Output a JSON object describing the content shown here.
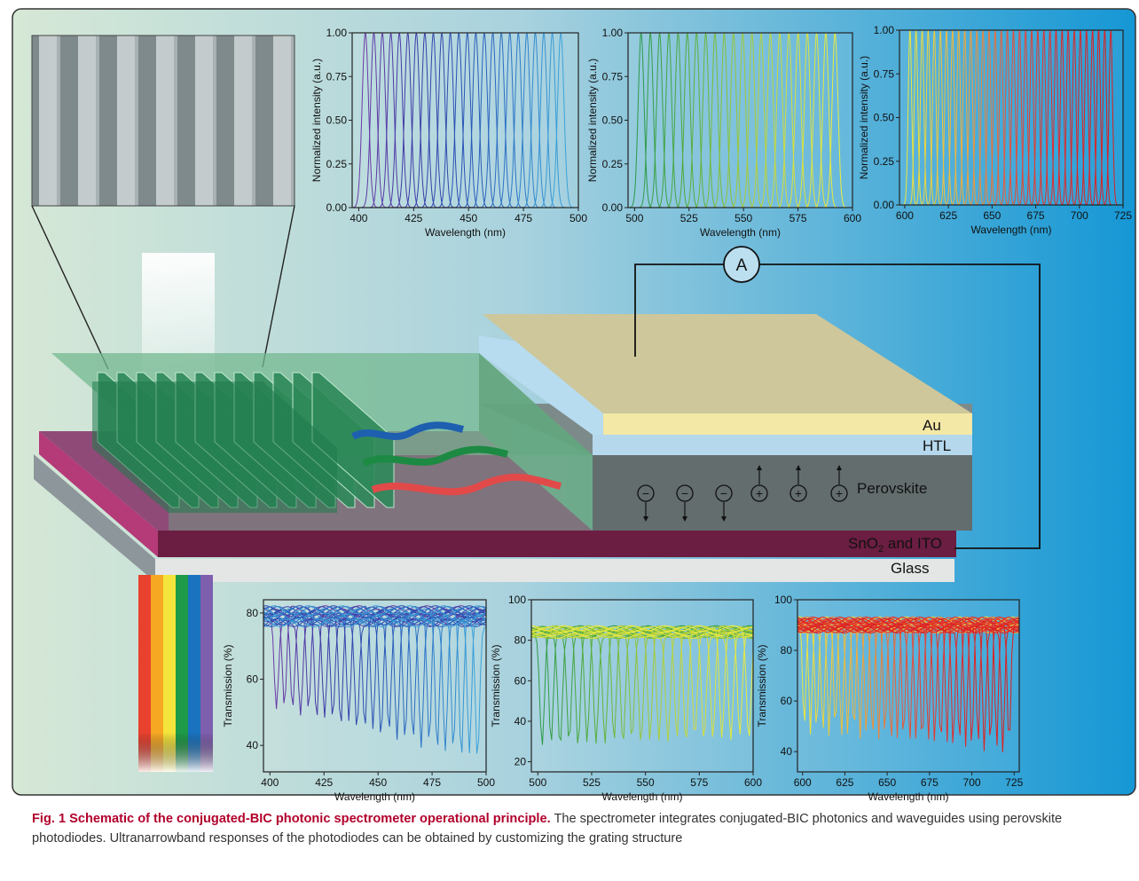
{
  "caption": {
    "label": "Fig. 1 Schematic of the conjugated-BIC photonic spectrometer operational principle.",
    "text": " The spectrometer integrates conjugated-BIC photonics and waveguides using perovskite photodiodes. Ultranarrowband responses of the photodiodes can be obtained by customizing the grating structure"
  },
  "layers": {
    "au": "Au",
    "htl": "HTL",
    "perovskite": "Perovskite",
    "sno2_prefix": "SnO",
    "sno2_sub": "2",
    "sno2_suffix": " and ITO",
    "glass": "Glass"
  },
  "ammeter": "A",
  "charges": {
    "minus": "−",
    "plus": "+"
  },
  "colors": {
    "au": "#f3e8a4",
    "htl": "#b5d9ee",
    "perovskite": "#616b6b",
    "sno2": "#6d1d42",
    "glass": "#e6e6e6",
    "background_left": "#d5e7d4",
    "background_right": "#1596d4"
  },
  "chart_data": [
    {
      "id": "resp-blue",
      "type": "line",
      "ylabel": "Normalized intensity (a.u.)",
      "xlabel": "Wavelength (nm)",
      "xlim": [
        397,
        500
      ],
      "ylim": [
        0,
        1.0
      ],
      "xticks": [
        400,
        425,
        450,
        475,
        500
      ],
      "yticks": [
        0.0,
        0.25,
        0.5,
        0.75,
        1.0
      ],
      "ytick_labels": [
        "0.00",
        "0.25",
        "0.50",
        "0.75",
        "1.00"
      ],
      "peaks_start": 403,
      "peaks_end": 492,
      "peak_count": 24,
      "peak_width": 2.6,
      "colors": [
        "#6a3aa6",
        "#3b3aa6",
        "#2853b5",
        "#2d76c7",
        "#3ba2d9"
      ]
    },
    {
      "id": "resp-green",
      "type": "line",
      "ylabel": "Normalized intensity (a.u.)",
      "xlabel": "Wavelength (nm)",
      "xlim": [
        497,
        600
      ],
      "ylim": [
        0,
        1.0
      ],
      "xticks": [
        500,
        525,
        550,
        575,
        600
      ],
      "yticks": [
        0.0,
        0.25,
        0.5,
        0.75,
        1.0
      ],
      "ytick_labels": [
        "0.00",
        "0.25",
        "0.50",
        "0.75",
        "1.00"
      ],
      "peaks_start": 503,
      "peaks_end": 592,
      "peak_count": 22,
      "peak_width": 2.4,
      "colors": [
        "#2c9a46",
        "#55ad3b",
        "#9bc73a",
        "#d3dd3a",
        "#ecec3e"
      ]
    },
    {
      "id": "resp-red",
      "type": "line",
      "ylabel": "Normalized intensity (a.u.)",
      "xlabel": "Wavelength (nm)",
      "xlim": [
        597,
        725
      ],
      "ylim": [
        0,
        1.0
      ],
      "xticks": [
        600,
        625,
        650,
        675,
        700,
        725
      ],
      "yticks": [
        0.0,
        0.25,
        0.5,
        0.75,
        1.0
      ],
      "ytick_labels": [
        "0.00",
        "0.25",
        "0.50",
        "0.75",
        "1.00"
      ],
      "peaks_start": 603,
      "peaks_end": 718,
      "peak_count": 34,
      "peak_width": 1.8,
      "colors": [
        "#eee53a",
        "#f2b03a",
        "#e6503a",
        "#e02828",
        "#dd1f1f"
      ]
    },
    {
      "id": "trans-blue",
      "type": "line",
      "ylabel": "Transmission (%)",
      "xlabel": "Wavelength (nm)",
      "xlim": [
        397,
        500
      ],
      "ylim": [
        32,
        84
      ],
      "xticks": [
        400,
        425,
        450,
        475,
        500
      ],
      "yticks": [
        40,
        60,
        80
      ],
      "ytick_labels": [
        "40",
        "60",
        "80"
      ],
      "dips_start": 403,
      "dips_end": 496,
      "dip_count": 26,
      "baseline": 79,
      "dip_min_start": 52,
      "dip_min_end": 36,
      "colors": [
        "#6a3aa6",
        "#3b3aa6",
        "#2853b5",
        "#2d76c7",
        "#3ba2d9"
      ]
    },
    {
      "id": "trans-green",
      "type": "line",
      "ylabel": "Transmission (%)",
      "xlabel": "Wavelength (nm)",
      "xlim": [
        497,
        600
      ],
      "ylim": [
        15,
        100
      ],
      "xticks": [
        500,
        525,
        550,
        575,
        600
      ],
      "yticks": [
        20,
        40,
        60,
        80,
        100
      ],
      "ytick_labels": [
        "20",
        "40",
        "60",
        "80",
        "100"
      ],
      "dips_start": 502,
      "dips_end": 598,
      "dip_count": 24,
      "baseline": 84,
      "dip_min_start": 28,
      "dip_min_end": 32,
      "colors": [
        "#2c9a46",
        "#55ad3b",
        "#9bc73a",
        "#d3dd3a",
        "#ecec3e"
      ]
    },
    {
      "id": "trans-red",
      "type": "line",
      "ylabel": "Transmission (%)",
      "xlabel": "Wavelength (nm)",
      "xlim": [
        597,
        728
      ],
      "ylim": [
        32,
        100
      ],
      "xticks": [
        600,
        625,
        650,
        675,
        700,
        725
      ],
      "yticks": [
        40,
        60,
        80,
        100
      ],
      "ytick_labels": [
        "40",
        "60",
        "80",
        "100"
      ],
      "dips_start": 601,
      "dips_end": 722,
      "dip_count": 34,
      "baseline": 90,
      "dip_min_start": 48,
      "dip_min_end": 40,
      "colors": [
        "#eee53a",
        "#f2b03a",
        "#e6503a",
        "#e02828",
        "#dd1f1f"
      ]
    }
  ]
}
